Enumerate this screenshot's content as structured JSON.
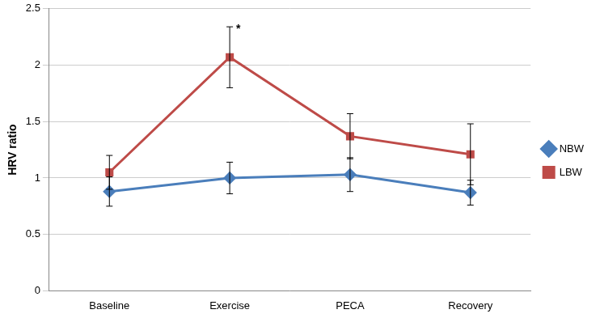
{
  "chart_data": {
    "type": "line",
    "y_label": "HRV ratio",
    "categories": [
      "Baseline",
      "Exercise",
      "PECA",
      "Recovery"
    ],
    "series": [
      {
        "name": "NBW",
        "color": "#4a7ebb",
        "marker": "diamond",
        "values": [
          0.88,
          1.0,
          1.03,
          0.87
        ],
        "errors": [
          0.13,
          0.14,
          0.15,
          0.11
        ]
      },
      {
        "name": "LBW",
        "color": "#be4b48",
        "marker": "square",
        "values": [
          1.05,
          2.07,
          1.37,
          1.21
        ],
        "errors": [
          0.15,
          0.27,
          0.2,
          0.27
        ]
      }
    ],
    "annotations": [
      {
        "text": "*",
        "category": "Exercise",
        "series": "LBW"
      }
    ],
    "ylim": [
      0,
      2.5
    ],
    "yticks": [
      0,
      0.5,
      1,
      1.5,
      2,
      2.5
    ],
    "grid": true,
    "legend": "right"
  }
}
